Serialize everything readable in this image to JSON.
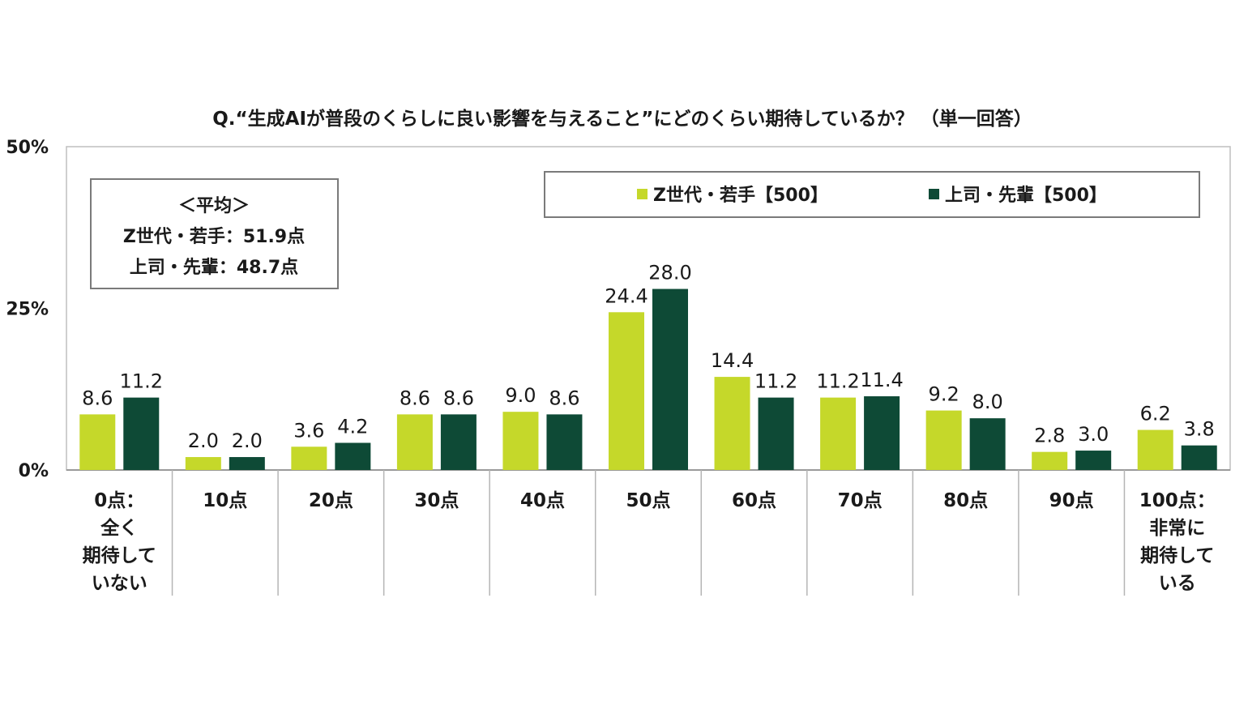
{
  "chart_data": {
    "type": "bar",
    "title": "Q.“生成AIが普段のくらしに良い影響を与えること”にどのくらい期待しているか？ （単一回答）",
    "categories": [
      [
        "0点：",
        "全く",
        "期待して",
        "いない"
      ],
      [
        "10点"
      ],
      [
        "20点"
      ],
      [
        "30点"
      ],
      [
        "40点"
      ],
      [
        "50点"
      ],
      [
        "60点"
      ],
      [
        "70点"
      ],
      [
        "80点"
      ],
      [
        "90点"
      ],
      [
        "100点：",
        "非常に",
        "期待して",
        "いる"
      ]
    ],
    "series": [
      {
        "name": "Z世代・若手【500】",
        "color": "#c5d82a",
        "values": [
          8.6,
          2.0,
          3.6,
          8.6,
          9.0,
          24.4,
          14.4,
          11.2,
          9.2,
          2.8,
          6.2
        ],
        "labels": [
          "8.6",
          "2.0",
          "3.6",
          "8.6",
          "9.0",
          "24.4",
          "14.4",
          "11.2",
          "9.2",
          "2.8",
          "6.2"
        ]
      },
      {
        "name": "上司・先輩【500】",
        "color": "#0e4a36",
        "values": [
          11.2,
          2.0,
          4.2,
          8.6,
          8.6,
          28.0,
          11.2,
          11.4,
          8.0,
          3.0,
          3.8
        ],
        "labels": [
          "11.2",
          "2.0",
          "4.2",
          "8.6",
          "8.6",
          "28.0",
          "11.2",
          "11.4",
          "8.0",
          "3.0",
          "3.8"
        ]
      }
    ],
    "ylim": [
      0,
      50
    ],
    "yticks": [
      "0%",
      "25%",
      "50%"
    ],
    "ytick_values": [
      0,
      25,
      50
    ],
    "legend": "top-right",
    "average_box": {
      "heading": "＜平均＞",
      "lines": [
        "Z世代・若手：51.9点",
        "上司・先輩：48.7点"
      ]
    },
    "grid": false
  }
}
